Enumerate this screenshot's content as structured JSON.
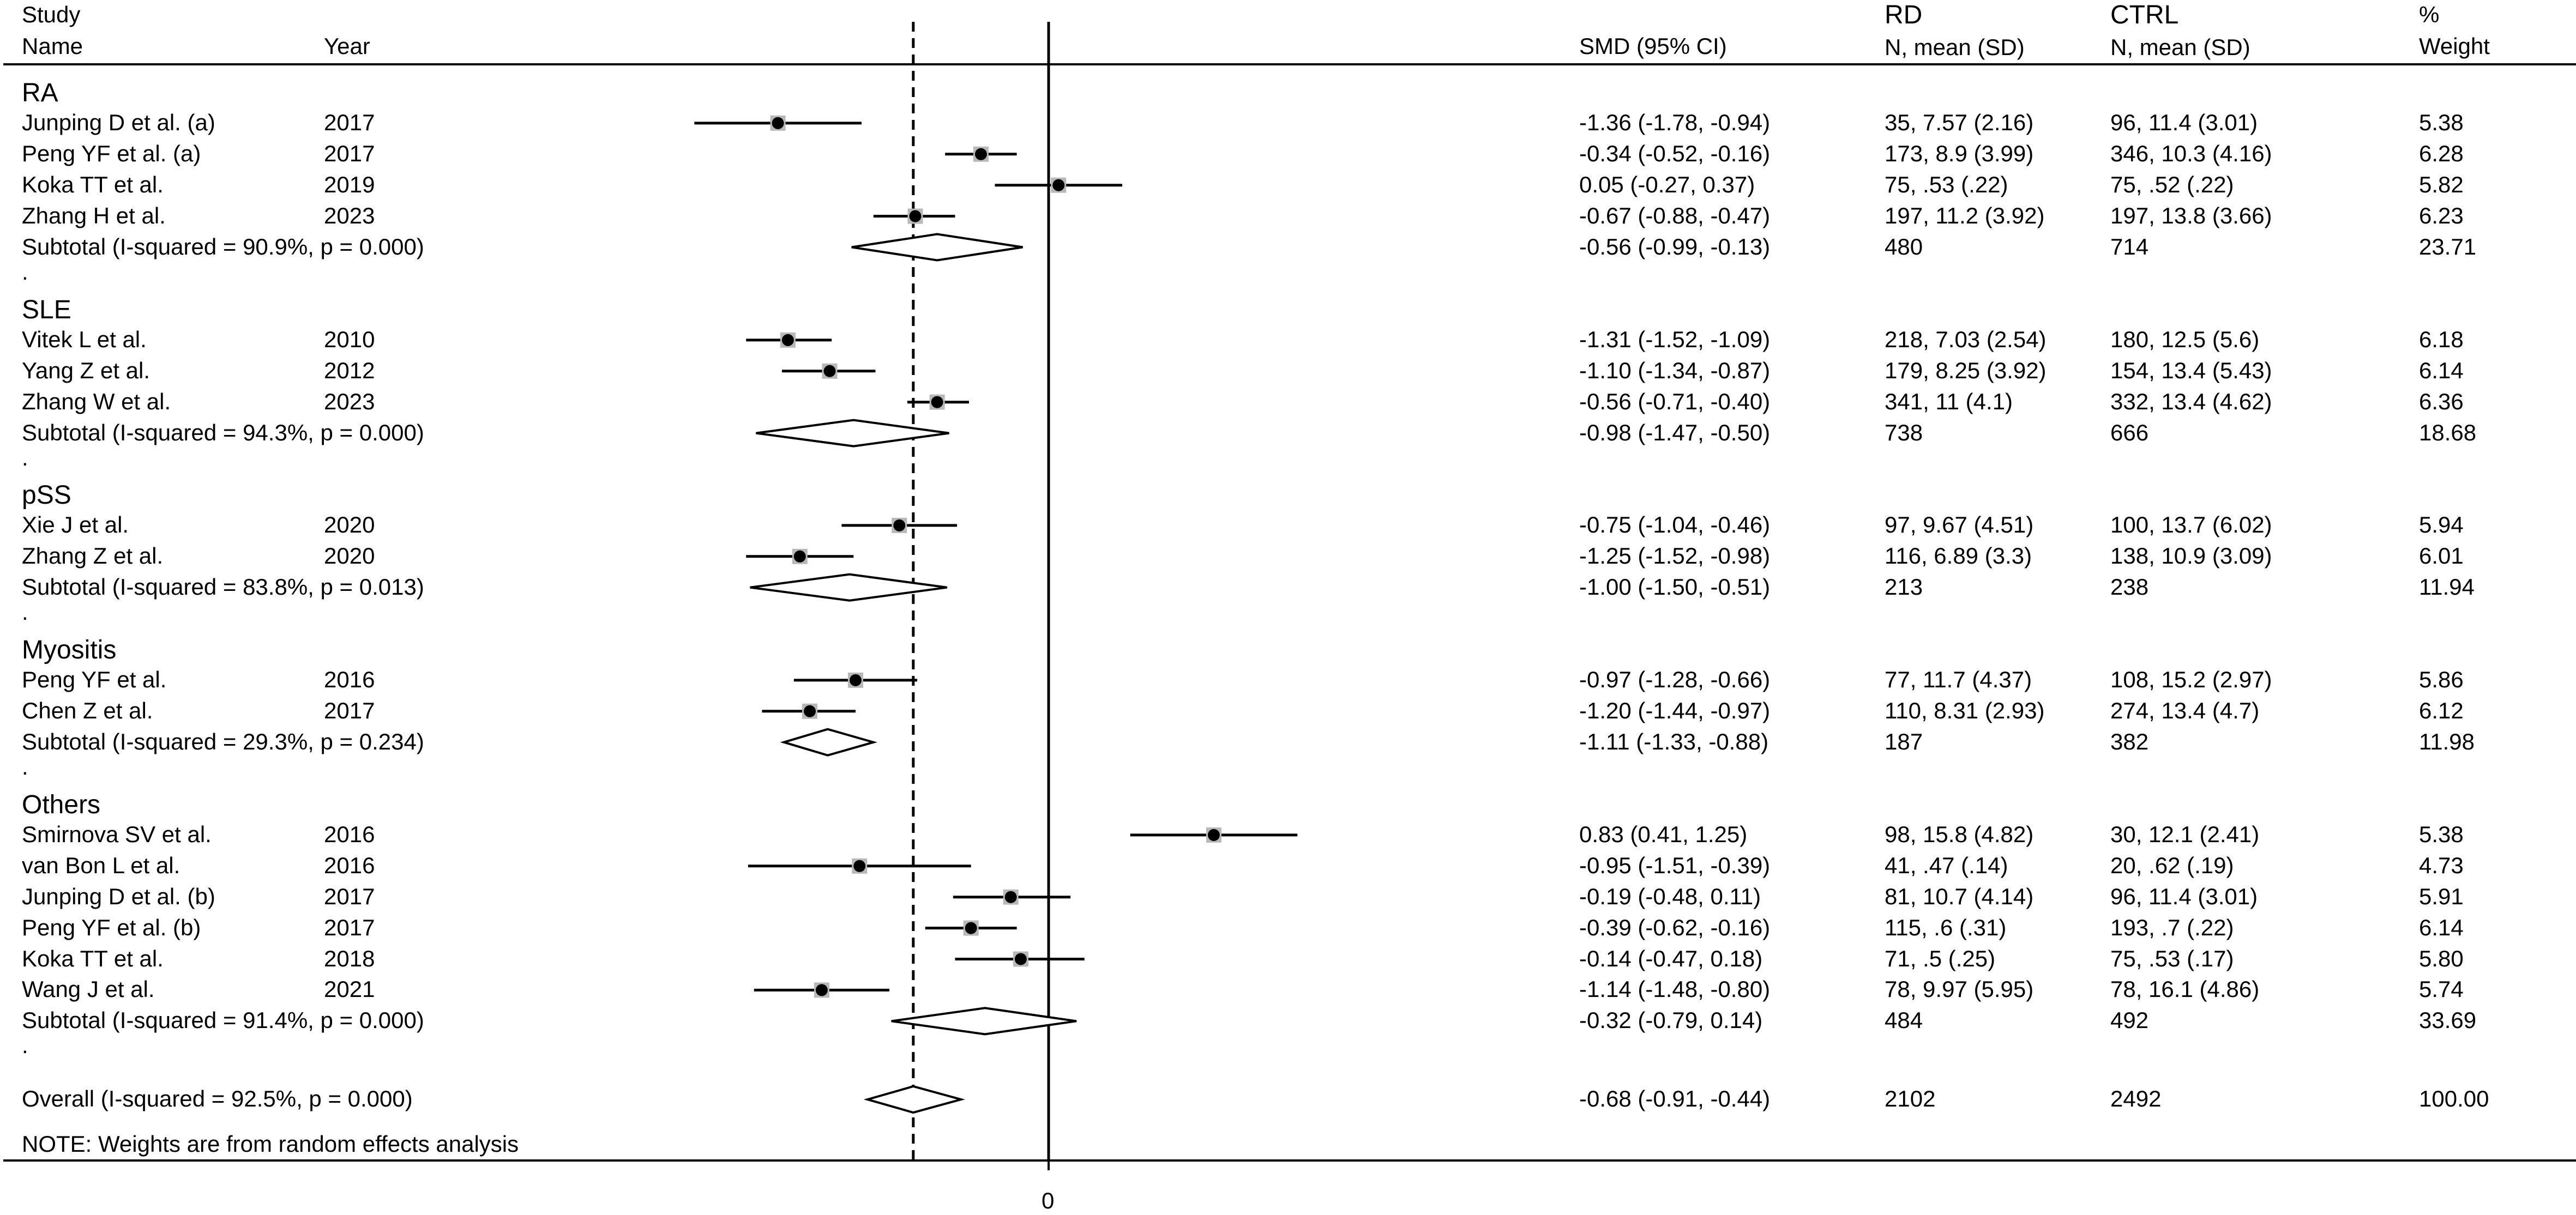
{
  "headers": {
    "study_line1": "Study",
    "study_line2": "Name",
    "year": "Year",
    "smd": "SMD (95% CI)",
    "rd_line1": "RD",
    "rd_line2": "N, mean (SD)",
    "ctrl_line1": "CTRL",
    "ctrl_line2": "N, mean (SD)",
    "weight_line1": "%",
    "weight_line2": "Weight"
  },
  "note": "NOTE: Weights are from random effects analysis",
  "chart_data": {
    "type": "forest",
    "effect_measure": "SMD (95% CI)",
    "null_line": 0,
    "overall_line": -0.68,
    "x_tick_labels": [
      "0"
    ],
    "xlim": [
      -2.4,
      1.83
    ],
    "groups": [
      {
        "name": "RA",
        "studies": [
          {
            "study": "Junping D et al. (a)",
            "year": "2017",
            "smd": -1.36,
            "lo": -1.78,
            "hi": -0.94,
            "ci_text": "-1.36 (-1.78, -0.94)",
            "rd": "35, 7.57 (2.16)",
            "ctrl": "96, 11.4 (3.01)",
            "weight": "5.38"
          },
          {
            "study": "Peng YF et al. (a)",
            "year": "2017",
            "smd": -0.34,
            "lo": -0.52,
            "hi": -0.16,
            "ci_text": "-0.34 (-0.52, -0.16)",
            "rd": "173, 8.9 (3.99)",
            "ctrl": "346, 10.3 (4.16)",
            "weight": "6.28"
          },
          {
            "study": "Koka TT et al.",
            "year": "2019",
            "smd": 0.05,
            "lo": -0.27,
            "hi": 0.37,
            "ci_text": "0.05 (-0.27, 0.37)",
            "rd": "75, .53 (.22)",
            "ctrl": "75, .52 (.22)",
            "weight": "5.82"
          },
          {
            "study": "Zhang H et al.",
            "year": "2023",
            "smd": -0.67,
            "lo": -0.88,
            "hi": -0.47,
            "ci_text": "-0.67 (-0.88, -0.47)",
            "rd": "197, 11.2 (3.92)",
            "ctrl": "197, 13.8 (3.66)",
            "weight": "6.23"
          }
        ],
        "subtotal": {
          "label": "Subtotal  (I-squared = 90.9%, p = 0.000)",
          "smd": -0.56,
          "lo": -0.99,
          "hi": -0.13,
          "ci_text": "-0.56 (-0.99, -0.13)",
          "rd": "480",
          "ctrl": "714",
          "weight": "23.71"
        }
      },
      {
        "name": "SLE",
        "studies": [
          {
            "study": "Vitek L et al.",
            "year": "2010",
            "smd": -1.31,
            "lo": -1.52,
            "hi": -1.09,
            "ci_text": "-1.31 (-1.52, -1.09)",
            "rd": "218, 7.03 (2.54)",
            "ctrl": "180, 12.5 (5.6)",
            "weight": "6.18"
          },
          {
            "study": "Yang Z et al.",
            "year": "2012",
            "smd": -1.1,
            "lo": -1.34,
            "hi": -0.87,
            "ci_text": "-1.10 (-1.34, -0.87)",
            "rd": "179, 8.25 (3.92)",
            "ctrl": "154, 13.4 (5.43)",
            "weight": "6.14"
          },
          {
            "study": "Zhang W et al.",
            "year": "2023",
            "smd": -0.56,
            "lo": -0.71,
            "hi": -0.4,
            "ci_text": "-0.56 (-0.71, -0.40)",
            "rd": "341, 11 (4.1)",
            "ctrl": "332, 13.4 (4.62)",
            "weight": "6.36"
          }
        ],
        "subtotal": {
          "label": "Subtotal  (I-squared = 94.3%, p = 0.000)",
          "smd": -0.98,
          "lo": -1.47,
          "hi": -0.5,
          "ci_text": "-0.98 (-1.47, -0.50)",
          "rd": "738",
          "ctrl": "666",
          "weight": "18.68"
        }
      },
      {
        "name": "pSS",
        "studies": [
          {
            "study": "Xie J et al.",
            "year": "2020",
            "smd": -0.75,
            "lo": -1.04,
            "hi": -0.46,
            "ci_text": "-0.75 (-1.04, -0.46)",
            "rd": "97, 9.67 (4.51)",
            "ctrl": "100, 13.7 (6.02)",
            "weight": "5.94"
          },
          {
            "study": "Zhang Z et al.",
            "year": "2020",
            "smd": -1.25,
            "lo": -1.52,
            "hi": -0.98,
            "ci_text": "-1.25 (-1.52, -0.98)",
            "rd": "116, 6.89 (3.3)",
            "ctrl": "138, 10.9 (3.09)",
            "weight": "6.01"
          }
        ],
        "subtotal": {
          "label": "Subtotal  (I-squared = 83.8%, p = 0.013)",
          "smd": -1.0,
          "lo": -1.5,
          "hi": -0.51,
          "ci_text": "-1.00 (-1.50, -0.51)",
          "rd": "213",
          "ctrl": "238",
          "weight": "11.94"
        }
      },
      {
        "name": "Myositis",
        "studies": [
          {
            "study": "Peng YF et al.",
            "year": "2016",
            "smd": -0.97,
            "lo": -1.28,
            "hi": -0.66,
            "ci_text": "-0.97 (-1.28, -0.66)",
            "rd": "77, 11.7 (4.37)",
            "ctrl": "108, 15.2 (2.97)",
            "weight": "5.86"
          },
          {
            "study": "Chen Z et al.",
            "year": "2017",
            "smd": -1.2,
            "lo": -1.44,
            "hi": -0.97,
            "ci_text": "-1.20 (-1.44, -0.97)",
            "rd": "110, 8.31 (2.93)",
            "ctrl": "274, 13.4 (4.7)",
            "weight": "6.12"
          }
        ],
        "subtotal": {
          "label": "Subtotal  (I-squared = 29.3%, p = 0.234)",
          "smd": -1.11,
          "lo": -1.33,
          "hi": -0.88,
          "ci_text": "-1.11 (-1.33, -0.88)",
          "rd": "187",
          "ctrl": "382",
          "weight": "11.98"
        }
      },
      {
        "name": "Others",
        "studies": [
          {
            "study": "Smirnova SV et al.",
            "year": "2016",
            "smd": 0.83,
            "lo": 0.41,
            "hi": 1.25,
            "ci_text": "0.83 (0.41, 1.25)",
            "rd": "98, 15.8 (4.82)",
            "ctrl": "30, 12.1 (2.41)",
            "weight": "5.38"
          },
          {
            "study": "van Bon L et al.",
            "year": "2016",
            "smd": -0.95,
            "lo": -1.51,
            "hi": -0.39,
            "ci_text": "-0.95 (-1.51, -0.39)",
            "rd": "41, .47 (.14)",
            "ctrl": "20, .62 (.19)",
            "weight": "4.73"
          },
          {
            "study": "Junping D et al. (b)",
            "year": "2017",
            "smd": -0.19,
            "lo": -0.48,
            "hi": 0.11,
            "ci_text": "-0.19 (-0.48, 0.11)",
            "rd": "81, 10.7 (4.14)",
            "ctrl": "96, 11.4 (3.01)",
            "weight": "5.91"
          },
          {
            "study": "Peng YF et al. (b)",
            "year": "2017",
            "smd": -0.39,
            "lo": -0.62,
            "hi": -0.16,
            "ci_text": "-0.39 (-0.62, -0.16)",
            "rd": "115, .6 (.31)",
            "ctrl": "193, .7 (.22)",
            "weight": "6.14"
          },
          {
            "study": "Koka TT et al.",
            "year": "2018",
            "smd": -0.14,
            "lo": -0.47,
            "hi": 0.18,
            "ci_text": "-0.14 (-0.47, 0.18)",
            "rd": "71, .5 (.25)",
            "ctrl": "75, .53 (.17)",
            "weight": "5.80"
          },
          {
            "study": "Wang J et al.",
            "year": "2021",
            "smd": -1.14,
            "lo": -1.48,
            "hi": -0.8,
            "ci_text": "-1.14 (-1.48, -0.80)",
            "rd": "78, 9.97 (5.95)",
            "ctrl": "78, 16.1 (4.86)",
            "weight": "5.74"
          }
        ],
        "subtotal": {
          "label": "Subtotal  (I-squared = 91.4%, p = 0.000)",
          "smd": -0.32,
          "lo": -0.79,
          "hi": 0.14,
          "ci_text": "-0.32 (-0.79, 0.14)",
          "rd": "484",
          "ctrl": "492",
          "weight": "33.69"
        }
      }
    ],
    "overall": {
      "label": "Overall  (I-squared = 92.5%, p = 0.000)",
      "smd": -0.68,
      "lo": -0.91,
      "hi": -0.44,
      "ci_text": "-0.68 (-0.91, -0.44)",
      "rd": "2102",
      "ctrl": "2492",
      "weight": "100.00"
    }
  }
}
